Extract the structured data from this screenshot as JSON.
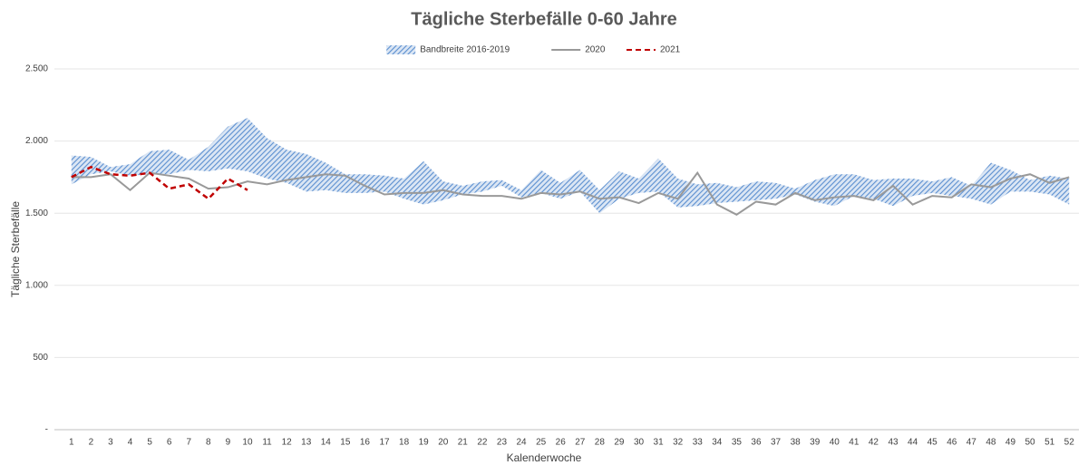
{
  "chart_data": {
    "type": "line",
    "title": "Tägliche Sterbefälle 0-60 Jahre",
    "y_label": "Tägliche Sterbefälle",
    "x_label": "Kalenderwoche",
    "legend": "top",
    "grid": true,
    "categories": [
      "1",
      "2",
      "3",
      "4",
      "5",
      "6",
      "7",
      "8",
      "9",
      "10",
      "11",
      "12",
      "13",
      "14",
      "15",
      "16",
      "17",
      "18",
      "19",
      "20",
      "21",
      "22",
      "23",
      "24",
      "25",
      "26",
      "27",
      "28",
      "29",
      "30",
      "31",
      "32",
      "33",
      "34",
      "35",
      "36",
      "37",
      "38",
      "39",
      "40",
      "41",
      "42",
      "43",
      "44",
      "45",
      "46",
      "47",
      "48",
      "49",
      "50",
      "51",
      "52"
    ],
    "ylim": [
      0,
      2500
    ],
    "yticks": [
      {
        "value": 0,
        "label": "-"
      },
      500,
      {
        "value": 1000,
        "label": "1.000"
      },
      {
        "value": 1500,
        "label": "1.500"
      },
      {
        "value": 2000,
        "label": "2.000"
      },
      {
        "value": 2500,
        "label": "2.500"
      }
    ],
    "series": [
      {
        "name": "Bandbreite 2016-2019",
        "type": "band",
        "color": "#5b8fd0",
        "upper": [
          1900,
          1890,
          1820,
          1840,
          1930,
          1940,
          1870,
          1960,
          2100,
          2160,
          2020,
          1940,
          1910,
          1850,
          1770,
          1770,
          1760,
          1740,
          1860,
          1720,
          1690,
          1720,
          1730,
          1660,
          1800,
          1710,
          1800,
          1660,
          1790,
          1740,
          1880,
          1740,
          1700,
          1710,
          1680,
          1720,
          1710,
          1670,
          1730,
          1770,
          1770,
          1730,
          1740,
          1740,
          1720,
          1750,
          1690,
          1850,
          1800,
          1730,
          1760,
          1740
        ],
        "lower": [
          1700,
          1770,
          1790,
          1760,
          1770,
          1770,
          1800,
          1790,
          1810,
          1790,
          1740,
          1710,
          1650,
          1660,
          1640,
          1640,
          1650,
          1600,
          1560,
          1590,
          1630,
          1650,
          1690,
          1610,
          1640,
          1600,
          1650,
          1500,
          1600,
          1640,
          1650,
          1540,
          1550,
          1570,
          1580,
          1590,
          1600,
          1630,
          1580,
          1550,
          1620,
          1600,
          1550,
          1620,
          1640,
          1620,
          1600,
          1560,
          1650,
          1650,
          1630,
          1560
        ]
      },
      {
        "name": "2020",
        "type": "line",
        "color": "#999999",
        "line_style": "solid",
        "values": [
          1750,
          1750,
          1770,
          1660,
          1780,
          1760,
          1740,
          1670,
          1680,
          1720,
          1700,
          1730,
          1750,
          1770,
          1760,
          1690,
          1630,
          1640,
          1640,
          1660,
          1630,
          1620,
          1620,
          1600,
          1640,
          1630,
          1650,
          1600,
          1610,
          1570,
          1640,
          1600,
          1780,
          1560,
          1490,
          1580,
          1560,
          1640,
          1590,
          1610,
          1620,
          1590,
          1690,
          1560,
          1620,
          1610,
          1700,
          1680,
          1740,
          1770,
          1710,
          1750
        ]
      },
      {
        "name": "2021",
        "type": "line",
        "color": "#c00000",
        "line_style": "dashed",
        "values": [
          1750,
          1820,
          1770,
          1760,
          1780,
          1670,
          1700,
          1600,
          1740,
          1660,
          null,
          null,
          null,
          null,
          null,
          null,
          null,
          null,
          null,
          null,
          null,
          null,
          null,
          null,
          null,
          null,
          null,
          null,
          null,
          null,
          null,
          null,
          null,
          null,
          null,
          null,
          null,
          null,
          null,
          null,
          null,
          null,
          null,
          null,
          null,
          null,
          null,
          null,
          null,
          null,
          null,
          null
        ]
      }
    ]
  }
}
